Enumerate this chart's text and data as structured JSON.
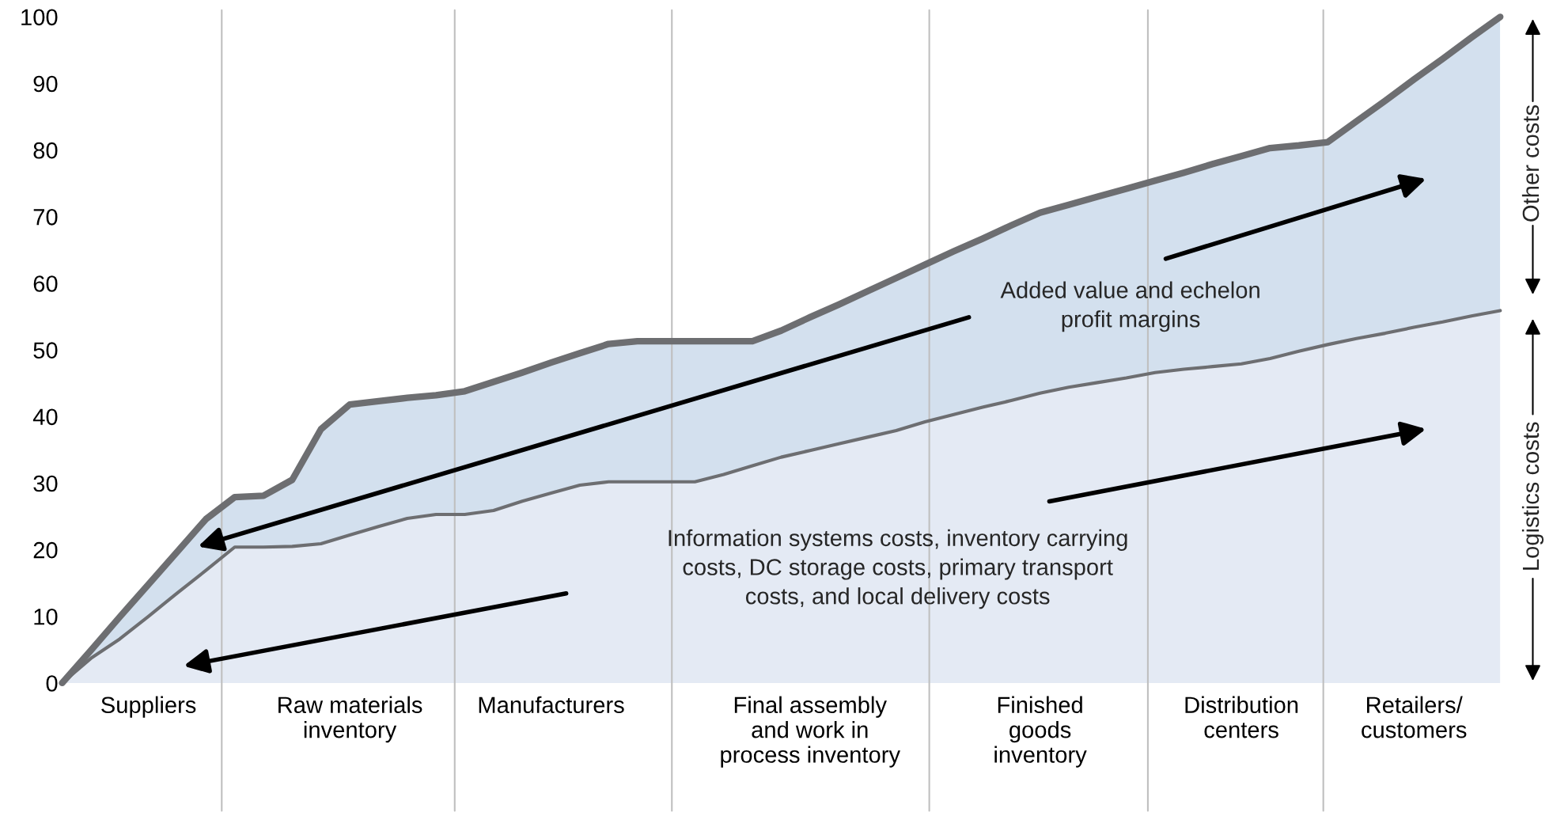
{
  "chart_data": {
    "type": "area",
    "categories": [
      null,
      null,
      null,
      "Suppliers",
      null,
      null,
      null,
      null,
      null,
      null,
      "Raw materials\ninventory",
      null,
      null,
      null,
      null,
      null,
      null,
      "Manufacturers",
      null,
      null,
      null,
      null,
      null,
      null,
      null,
      null,
      "Final assembly\nand work in\nprocess inventory",
      null,
      null,
      null,
      null,
      null,
      null,
      null,
      "Finished\ngoods\ninventory",
      null,
      null,
      null,
      null,
      null,
      null,
      "Distribution\ncenters",
      null,
      null,
      null,
      null,
      null,
      "Retailers/\ncustomers",
      null,
      null,
      null
    ],
    "series": [
      {
        "color": "#d3e0ee",
        "values": [
          0,
          4.9,
          9.9,
          14.8,
          19.7,
          24.6,
          27.9,
          28.1,
          30.5,
          38.1,
          41.8,
          42.3,
          42.8,
          43.2,
          43.8,
          45.2,
          46.6,
          48.1,
          49.5,
          50.9,
          51.3,
          51.3,
          51.3,
          51.3,
          51.3,
          52.9,
          54.9,
          56.8,
          58.8,
          60.8,
          62.8,
          64.8,
          66.7,
          68.7,
          70.6,
          71.8,
          73.0,
          74.2,
          75.4,
          76.6,
          77.9,
          79.1,
          80.3,
          80.7,
          81.2,
          84.3,
          87.4,
          90.6,
          93.7,
          96.9,
          100
        ]
      },
      {
        "color": "#e4eaf4",
        "values": [
          0,
          3.7,
          6.6,
          10.0,
          13.5,
          16.9,
          20.4,
          20.4,
          20.5,
          20.9,
          22.2,
          23.5,
          24.7,
          25.3,
          25.3,
          25.9,
          27.3,
          28.5,
          29.7,
          30.2,
          30.2,
          30.2,
          30.2,
          31.3,
          32.6,
          33.9,
          34.9,
          35.9,
          36.9,
          37.9,
          39.2,
          40.3,
          41.4,
          42.4,
          43.5,
          44.4,
          45.1,
          45.8,
          46.6,
          47.1,
          47.5,
          47.9,
          48.7,
          49.8,
          50.8,
          51.7,
          52.5,
          53.4,
          54.2,
          55.1,
          55.9
        ]
      }
    ],
    "ylim": [
      0,
      101
    ],
    "yticks": [
      0,
      10,
      20,
      30,
      40,
      50,
      60,
      70,
      80,
      90,
      100
    ],
    "annotations": [
      "Added value and echelon\nprofit margins",
      "Information systems costs, inventory carrying\ncosts, DC storage costs, primary transport\ncosts, and local delivery costs",
      "Other costs",
      "Logistics costs"
    ],
    "grid": "x"
  }
}
